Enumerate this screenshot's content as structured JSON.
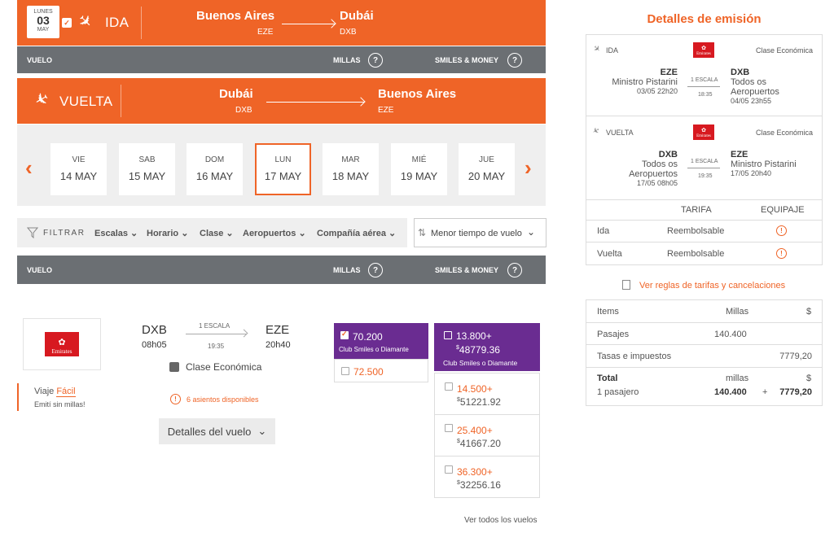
{
  "outbound": {
    "day_name": "LUNES",
    "day_num": "03",
    "month": "MAY",
    "label": "IDA",
    "from_city": "Buenos Aires",
    "from_code": "EZE",
    "to_city": "Dubái",
    "to_code": "DXB"
  },
  "header_bar": {
    "vuelo": "VUELO",
    "millas": "MILLAS",
    "smiles_money": "SMILES & MONEY",
    "help": "?"
  },
  "return": {
    "label": "VUELTA",
    "from_city": "Dubái",
    "from_code": "DXB",
    "to_city": "Buenos Aires",
    "to_code": "EZE"
  },
  "dates": [
    {
      "wd": "VIE",
      "d": "14 MAY"
    },
    {
      "wd": "SAB",
      "d": "15 MAY"
    },
    {
      "wd": "DOM",
      "d": "16 MAY"
    },
    {
      "wd": "LUN",
      "d": "17 MAY"
    },
    {
      "wd": "MAR",
      "d": "18 MAY"
    },
    {
      "wd": "MIÉ",
      "d": "19 MAY"
    },
    {
      "wd": "JUE",
      "d": "20 MAY"
    }
  ],
  "filters": {
    "label": "FILTRAR",
    "items": [
      "Escalas",
      "Horario",
      "Clase",
      "Aeropuertos",
      "Compañía aérea"
    ],
    "sort": "Menor tiempo de vuelo"
  },
  "flight": {
    "airline_logo": "Emirates",
    "dep_code": "DXB",
    "dep_time": "08h05",
    "stops": "1 ESCALA",
    "stop_time": "19:35",
    "arr_code": "EZE",
    "arr_time": "20h40",
    "cabin": "Clase Económica",
    "seats": "6 asientos disponibles",
    "promo_line1": "Viaje",
    "promo_highlight": "Fácil",
    "promo_line2": "Emití sin millas!",
    "details_btn": "Detalles del vuelo"
  },
  "miles_options": [
    {
      "value": "70.200",
      "sub": "Club Smiles o Diamante"
    },
    {
      "value": "72.500"
    }
  ],
  "money_options": [
    {
      "miles": "13.800+",
      "cur": "$",
      "amount": "48779.36",
      "sub": "Club Smiles o Diamante"
    },
    {
      "miles": "14.500+",
      "cur": "$",
      "amount": "51221.92"
    },
    {
      "miles": "25.400+",
      "cur": "$",
      "amount": "41667.20"
    },
    {
      "miles": "36.300+",
      "cur": "$",
      "amount": "32256.16"
    }
  ],
  "see_all": "Ver todos los vuelos",
  "summary": {
    "title": "Detalles de emisión",
    "ida": {
      "label": "IDA",
      "cabin": "Clase Económica",
      "from_code": "EZE",
      "from_name": "Ministro Pistarini",
      "from_dt": "03/05 22h20",
      "stops": "1 ESCALA",
      "stop_time": "18:35",
      "to_code": "DXB",
      "to_name1": "Todos os",
      "to_name2": "Aeropuertos",
      "to_dt": "04/05 23h55"
    },
    "vuelta": {
      "label": "VUELTA",
      "cabin": "Clase Económica",
      "from_code": "DXB",
      "from_name1": "Todos os",
      "from_name2": "Aeropuertos",
      "from_dt": "17/05 08h05",
      "stops": "1 ESCALA",
      "stop_time": "19:35",
      "to_code": "EZE",
      "to_name": "Ministro Pistarini",
      "to_dt": "17/05 20h40"
    },
    "fare_head": {
      "tarifa": "TARIFA",
      "equipaje": "EQUIPAJE"
    },
    "fare_rows": [
      {
        "leg": "Ida",
        "fare": "Reembolsable"
      },
      {
        "leg": "Vuelta",
        "fare": "Reembolsable"
      }
    ],
    "rules_link": "Ver reglas de tarifas y cancelaciones",
    "items_head": {
      "items": "Items",
      "millas": "Millas",
      "cur": "$"
    },
    "pasajes": {
      "label": "Pasajes",
      "millas": "140.400"
    },
    "tasas": {
      "label": "Tasas e impuestos",
      "amount": "7779,20"
    },
    "total": {
      "label": "Total",
      "millas_lbl": "millas",
      "cur": "$",
      "pax": "1 pasajero",
      "millas": "140.400",
      "plus": "+",
      "amount": "7779,20"
    }
  }
}
